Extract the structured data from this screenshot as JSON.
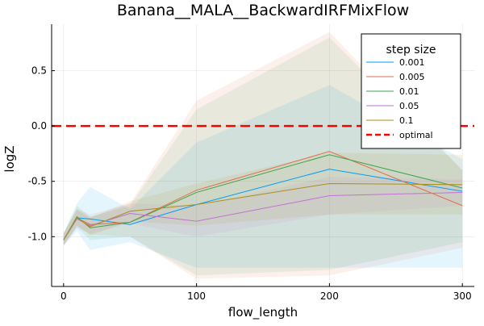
{
  "chart_data": {
    "type": "line",
    "title": "Banana__MALA__BackwardIRFMixFlow",
    "xlabel": "flow_length",
    "ylabel": "logZ",
    "xlim": [
      -9,
      309
    ],
    "ylim": [
      -1.45,
      0.92
    ],
    "xticks": [
      0,
      100,
      200,
      300
    ],
    "yticks": [
      -1.0,
      -0.5,
      0.0,
      0.5
    ],
    "xtick_labels": [
      "0",
      "100",
      "200",
      "300"
    ],
    "ytick_labels": [
      "-1.0",
      "-0.5",
      "0.0",
      "0.5"
    ],
    "grid": true,
    "legend": {
      "title": "step size",
      "position": "top-right"
    },
    "x": [
      0,
      10,
      20,
      50,
      100,
      200,
      300
    ],
    "series": [
      {
        "name": "0.001",
        "color": "#009AFA",
        "values": [
          -1.03,
          -0.83,
          -0.84,
          -0.89,
          -0.71,
          -0.39,
          -0.59
        ],
        "lower": [
          -1.08,
          -0.95,
          -1.12,
          -1.05,
          -1.28,
          -1.28,
          -1.28
        ],
        "upper": [
          -0.97,
          -0.7,
          -0.55,
          -0.75,
          -0.15,
          0.37,
          -0.3
        ]
      },
      {
        "name": "0.005",
        "color": "#E36F47",
        "values": [
          -1.03,
          -0.83,
          -0.89,
          -0.87,
          -0.58,
          -0.23,
          -0.72
        ],
        "lower": [
          -1.08,
          -0.9,
          -0.98,
          -1.0,
          -1.38,
          -1.35,
          -1.1
        ],
        "upper": [
          -0.97,
          -0.75,
          -0.8,
          -0.7,
          0.23,
          0.85,
          -0.4
        ]
      },
      {
        "name": "0.01",
        "color": "#3EA44E",
        "values": [
          -1.03,
          -0.82,
          -0.92,
          -0.87,
          -0.6,
          -0.26,
          -0.56
        ],
        "lower": [
          -1.08,
          -0.92,
          -1.03,
          -1.0,
          -1.35,
          -1.3,
          -1.05
        ],
        "upper": [
          -0.97,
          -0.72,
          -0.82,
          -0.72,
          0.15,
          0.8,
          -0.4
        ]
      },
      {
        "name": "0.05",
        "color": "#C271D2",
        "values": [
          -1.03,
          -0.84,
          -0.9,
          -0.79,
          -0.86,
          -0.63,
          -0.6
        ],
        "lower": [
          -1.08,
          -0.92,
          -0.97,
          -0.88,
          -1.0,
          -0.8,
          -0.72
        ],
        "upper": [
          -0.97,
          -0.76,
          -0.83,
          -0.7,
          -0.72,
          -0.46,
          -0.48
        ]
      },
      {
        "name": "0.1",
        "color": "#AC8E18",
        "values": [
          -1.03,
          -0.83,
          -0.91,
          -0.77,
          -0.71,
          -0.52,
          -0.53
        ],
        "lower": [
          -1.08,
          -0.9,
          -0.99,
          -0.86,
          -0.9,
          -0.8,
          -0.8
        ],
        "upper": [
          -0.97,
          -0.75,
          -0.83,
          -0.68,
          -0.52,
          -0.24,
          -0.26
        ]
      }
    ],
    "reference_line": {
      "name": "optimal",
      "y": 0.0,
      "color": "#FF0000",
      "style": "dashed"
    }
  }
}
